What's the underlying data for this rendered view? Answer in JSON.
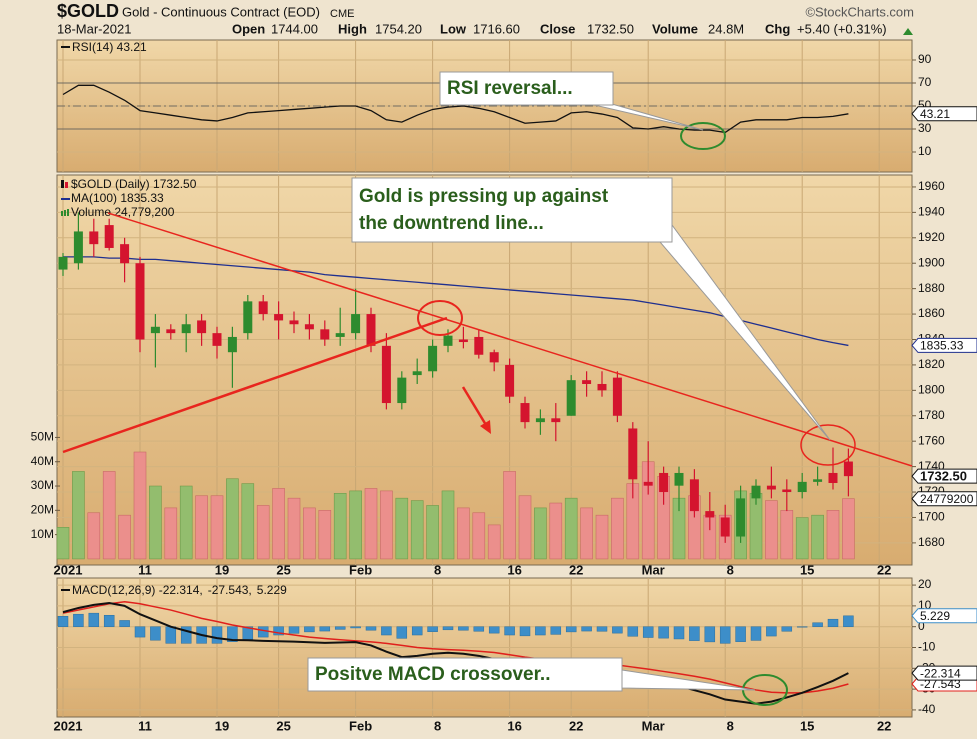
{
  "header": {
    "symbol": "$GOLD",
    "description": "Gold - Continuous Contract (EOD)",
    "exchange": "CME",
    "source": "©StockCharts.com",
    "date": "18-Mar-2021",
    "fields": [
      {
        "label": "Open",
        "value": "1744.00"
      },
      {
        "label": "High",
        "value": "1754.20"
      },
      {
        "label": "Low",
        "value": "1716.60"
      },
      {
        "label": "Close",
        "value": "1732.50"
      },
      {
        "label": "Volume",
        "value": "24.8M"
      },
      {
        "label": "Chg",
        "value": "+5.40 (+0.31%)"
      }
    ]
  },
  "annotations": [
    {
      "lines": [
        "RSI reversal..."
      ]
    },
    {
      "lines": [
        "Gold is pressing up against",
        "the downtrend line..."
      ]
    },
    {
      "lines": [
        "Positve MACD crossover.."
      ]
    }
  ],
  "chart_data": [
    {
      "type": "line",
      "title": "RSI(14) 43.21",
      "series": [
        {
          "color": "#111111",
          "end_label": "43.21",
          "values": [
            60,
            68,
            68,
            62,
            55,
            46,
            44,
            42,
            40,
            38,
            37,
            40,
            44,
            45,
            46,
            47,
            48,
            49,
            50,
            50,
            46,
            38,
            36,
            42,
            47,
            49,
            50,
            48,
            45,
            40,
            35,
            36,
            37,
            44,
            45,
            43,
            40,
            31,
            30,
            32,
            30,
            29,
            29,
            27,
            36,
            38,
            38,
            38,
            40,
            40,
            41,
            43.21,
            null,
            null
          ]
        }
      ],
      "ylim": [
        -7.4,
        107.4
      ],
      "yticks": [
        10,
        30,
        50,
        70,
        90
      ],
      "levels": [
        30,
        70
      ],
      "midline": 50,
      "grid": true
    },
    {
      "type": "candlestick",
      "categories": [
        "2021",
        null,
        null,
        null,
        null,
        "11",
        null,
        null,
        null,
        null,
        "19",
        null,
        null,
        null,
        "25",
        null,
        null,
        null,
        null,
        "Feb",
        null,
        null,
        null,
        null,
        "8",
        null,
        null,
        null,
        null,
        "16",
        null,
        null,
        null,
        "22",
        null,
        null,
        null,
        null,
        "Mar",
        null,
        null,
        null,
        null,
        "8",
        null,
        null,
        null,
        null,
        "15",
        null,
        null,
        null,
        null,
        "22"
      ],
      "series": [
        {
          "name": "$GOLD (Daily) 1732.50",
          "up_color": "#2e8b2e",
          "down_color": "#d4142e",
          "end_label": "1732.50",
          "open": [
            1895,
            1900,
            1925,
            1930,
            1915,
            1900,
            1845,
            1848,
            1845,
            1855,
            1845,
            1830,
            1845,
            1870,
            1860,
            1855,
            1852,
            1848,
            1842,
            1845,
            1860,
            1835,
            1790,
            1812,
            1815,
            1835,
            1840,
            1842,
            1830,
            1820,
            1790,
            1775,
            1778,
            1780,
            1808,
            1805,
            1810,
            1770,
            1728,
            1735,
            1725,
            1730,
            1705,
            1700,
            1685,
            1715,
            1725,
            1722,
            1720,
            1728,
            1735,
            1744,
            null,
            null
          ],
          "high": [
            1908,
            1940,
            1935,
            1935,
            1920,
            1905,
            1860,
            1852,
            1860,
            1860,
            1850,
            1850,
            1875,
            1875,
            1870,
            1862,
            1860,
            1855,
            1865,
            1880,
            1865,
            1845,
            1815,
            1825,
            1840,
            1848,
            1850,
            1848,
            1832,
            1825,
            1795,
            1785,
            1790,
            1812,
            1815,
            1815,
            1815,
            1775,
            1760,
            1740,
            1740,
            1738,
            1720,
            1710,
            1725,
            1730,
            1740,
            1730,
            1735,
            1740,
            1755,
            1754.2,
            null,
            null
          ],
          "low": [
            1890,
            1895,
            1905,
            1910,
            1885,
            1830,
            1818,
            1840,
            1830,
            1835,
            1825,
            1802,
            1840,
            1855,
            1840,
            1845,
            1840,
            1835,
            1835,
            1840,
            1830,
            1785,
            1785,
            1805,
            1810,
            1830,
            1833,
            1825,
            1815,
            1790,
            1770,
            1765,
            1760,
            1780,
            1795,
            1795,
            1775,
            1715,
            1718,
            1710,
            1705,
            1700,
            1690,
            1680,
            1680,
            1710,
            1715,
            1705,
            1715,
            1725,
            1722,
            1716.6,
            null,
            null
          ],
          "close": [
            1905,
            1925,
            1915,
            1912,
            1900,
            1840,
            1850,
            1845,
            1852,
            1845,
            1835,
            1842,
            1870,
            1860,
            1855,
            1852,
            1848,
            1840,
            1845,
            1860,
            1835,
            1790,
            1810,
            1815,
            1835,
            1843,
            1838,
            1828,
            1822,
            1795,
            1775,
            1778,
            1775,
            1808,
            1805,
            1800,
            1780,
            1730,
            1725,
            1720,
            1735,
            1705,
            1700,
            1685,
            1715,
            1725,
            1722,
            1720,
            1728,
            1730,
            1727.1,
            1732.5,
            null,
            null
          ]
        },
        {
          "name": "MA(100) 1835.33",
          "color": "#1f2f8f",
          "end_label": "1835.33",
          "values": [
            1905,
            1905,
            1905,
            1904,
            1904,
            1903,
            1903,
            1902,
            1901,
            1900,
            1899,
            1898,
            1897,
            1896,
            1895,
            1894,
            1893,
            1891,
            1890,
            1889,
            1888,
            1887,
            1886,
            1885,
            1884,
            1883,
            1882,
            1881,
            1880,
            1879,
            1878,
            1877,
            1876,
            1875,
            1874,
            1873,
            1872,
            1871,
            1869,
            1867,
            1865,
            1863,
            1861,
            1858,
            1855,
            1852,
            1849,
            1846,
            1843,
            1840,
            1837.5,
            1835.33,
            null,
            null
          ]
        },
        {
          "name": "Volume 24,779,200",
          "axis": "y2",
          "up_color": "#93bd6e",
          "down_color": "#eb8f8c",
          "end_label": "24779200",
          "values": [
            13000000,
            36000000,
            19000000,
            36000000,
            18000000,
            44000000,
            30000000,
            21000000,
            30000000,
            26000000,
            26000000,
            33000000,
            31000000,
            22000000,
            29000000,
            25000000,
            21000000,
            20000000,
            27000000,
            28000000,
            29000000,
            28000000,
            25000000,
            24000000,
            22000000,
            28000000,
            21000000,
            19000000,
            14000000,
            36000000,
            26000000,
            21000000,
            23000000,
            25000000,
            21000000,
            18000000,
            25000000,
            31000000,
            40000000,
            34000000,
            25000000,
            26000000,
            18000000,
            18000000,
            28000000,
            27000000,
            24000000,
            20000000,
            17000000,
            18000000,
            20000000,
            24779200,
            null,
            null
          ]
        }
      ],
      "ylim": [
        1662.6,
        1969.4
      ],
      "yticks": [
        1680,
        1700,
        1720,
        1740,
        1760,
        1780,
        1800,
        1820,
        1840,
        1860,
        1880,
        1900,
        1920,
        1940,
        1960
      ],
      "y2lim": [
        -2500000,
        158000000
      ],
      "y2ticks": [
        {
          "value": 10000000,
          "label": "10M"
        },
        {
          "value": 20000000,
          "label": "20M"
        },
        {
          "value": 30000000,
          "label": "30M"
        },
        {
          "value": 40000000,
          "label": "40M"
        },
        {
          "value": 50000000,
          "label": "50M"
        }
      ],
      "grid": true
    },
    {
      "type": "macd",
      "categories": [
        "2021",
        null,
        null,
        null,
        null,
        "11",
        null,
        null,
        null,
        null,
        "19",
        null,
        null,
        null,
        "25",
        null,
        null,
        null,
        null,
        "Feb",
        null,
        null,
        null,
        null,
        "8",
        null,
        null,
        null,
        null,
        "16",
        null,
        null,
        null,
        "22",
        null,
        null,
        null,
        null,
        "Mar",
        null,
        null,
        null,
        null,
        "8",
        null,
        null,
        null,
        null,
        "15",
        null,
        null,
        null,
        null,
        "22"
      ],
      "series": [
        {
          "name": "5.229",
          "style": "bar",
          "color": "#3d8ec9",
          "end_label": "5.229",
          "values": [
            5,
            6,
            6.5,
            5.5,
            3,
            -5,
            -6.5,
            -8,
            -8,
            -8,
            -8,
            -7.2,
            -6,
            -5,
            -4,
            -3.2,
            -2.5,
            -2.1,
            -1.3,
            -0.6,
            -1.7,
            -4,
            -5.6,
            -4,
            -2.4,
            -1.5,
            -1.7,
            -2.2,
            -3.1,
            -4,
            -4.4,
            -4,
            -3.7,
            -2.5,
            -2.1,
            -2.2,
            -3.1,
            -4.6,
            -5.2,
            -5.5,
            -5.9,
            -6.7,
            -7.3,
            -8,
            -7.2,
            -6.6,
            -4.5,
            -2.2,
            0,
            1.9,
            3.6,
            5.229,
            null,
            null
          ]
        },
        {
          "name": "-27.543,",
          "color": "#e0201c",
          "end_label": "-27.543",
          "values": [
            6.5,
            8,
            9.5,
            11,
            12,
            11,
            9.5,
            8,
            6,
            4,
            2.5,
            0.8,
            -0.5,
            -1.8,
            -3,
            -4,
            -5,
            -5.7,
            -6.3,
            -6.8,
            -7.3,
            -8,
            -9,
            -10,
            -10.6,
            -11,
            -11.3,
            -11.8,
            -12.4,
            -13.5,
            -14.6,
            -15.5,
            -16.3,
            -17,
            -17.4,
            -17.8,
            -18.4,
            -19.4,
            -20.4,
            -21.5,
            -22.6,
            -23.8,
            -25.2,
            -27,
            -28.8,
            -30.4,
            -31.5,
            -31.8,
            -31.8,
            -30.9,
            -29.6,
            -27.543,
            null,
            null
          ]
        },
        {
          "name": "MACD(12,26,9) -22.314,",
          "color": "#111111",
          "end_label": "-22.314",
          "values": [
            7,
            9,
            10.5,
            11.4,
            10,
            6,
            3,
            0,
            -2,
            -4,
            -5.5,
            -6.4,
            -6.5,
            -6.8,
            -7,
            -7.2,
            -7.5,
            -7.8,
            -7.6,
            -7.4,
            -9,
            -12,
            -14.6,
            -14,
            -13,
            -12.5,
            -13,
            -14,
            -15.5,
            -17.5,
            -19,
            -19.5,
            -20,
            -19.5,
            -19.5,
            -20,
            -21.5,
            -24,
            -25.6,
            -27,
            -28.5,
            -30.5,
            -32.5,
            -35,
            -36,
            -37,
            -36,
            -34,
            -31.8,
            -29,
            -26,
            -22.314,
            null,
            null
          ]
        }
      ],
      "legend_order": [
        2,
        1,
        0
      ],
      "ylim": [
        -43.4,
        23.4
      ],
      "yticks": [
        20,
        10,
        0,
        -10,
        -20,
        -30,
        -40
      ],
      "grid": true
    }
  ]
}
